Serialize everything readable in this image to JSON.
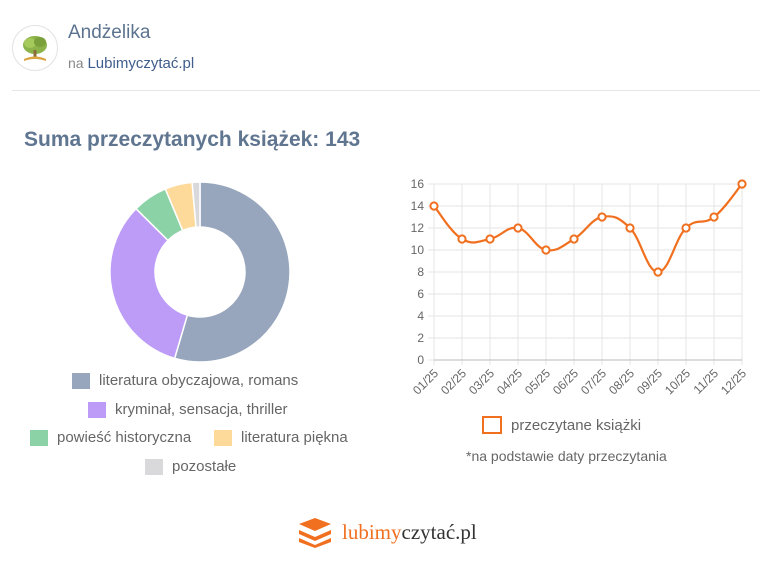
{
  "header": {
    "user_name": "Andżelika",
    "source_prefix": "na",
    "source_link": "Lubimyczytać.pl"
  },
  "stats": {
    "title": "Suma przeczytanych książek: 143"
  },
  "chart_data": [
    {
      "type": "pie",
      "categories": [
        "literatura obyczajowa, romans",
        "kryminał, sensacja, thriller",
        "powieść historyczna",
        "literatura piękna",
        "pozostałe"
      ],
      "values": [
        78,
        47,
        9,
        7,
        2
      ],
      "colors": [
        "#97a6bd",
        "#bd9cf8",
        "#8bd3a6",
        "#fdd99a",
        "#d9d9dc"
      ],
      "donut": true
    },
    {
      "type": "line",
      "x": [
        "01/25",
        "02/25",
        "03/25",
        "04/25",
        "05/25",
        "06/25",
        "07/25",
        "08/25",
        "09/25",
        "10/25",
        "11/25",
        "12/25"
      ],
      "series": [
        {
          "name": "przeczytane książki",
          "values": [
            14,
            11,
            11,
            12,
            10,
            11,
            13,
            12,
            8,
            12,
            13,
            16
          ],
          "color": "#f07020"
        }
      ],
      "yticks": [
        "0",
        "2",
        "4",
        "6",
        "8",
        "10",
        "12",
        "14",
        "16"
      ],
      "ylim": [
        0,
        16
      ],
      "grid": true,
      "note": "*na podstawie daty przeczytania"
    }
  ],
  "footer": {
    "brand_part1": "lubimy",
    "brand_part2": "czytać.pl"
  }
}
